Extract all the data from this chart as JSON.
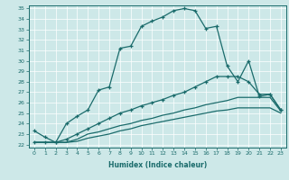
{
  "xlabel": "Humidex (Indice chaleur)",
  "bg_color": "#cde8e8",
  "line_color": "#1a6b6b",
  "grid_color": "#ffffff",
  "xlim": [
    -0.5,
    23.5
  ],
  "ylim": [
    21.7,
    35.3
  ],
  "xticks": [
    0,
    1,
    2,
    3,
    4,
    5,
    6,
    7,
    8,
    9,
    10,
    11,
    12,
    13,
    14,
    15,
    16,
    17,
    18,
    19,
    20,
    21,
    22,
    23
  ],
  "yticks": [
    22,
    23,
    24,
    25,
    26,
    27,
    28,
    29,
    30,
    31,
    32,
    33,
    34,
    35
  ],
  "curve_top_x": [
    0,
    1,
    2,
    3,
    4,
    5,
    6,
    7,
    8,
    9,
    10,
    11,
    12,
    13,
    14,
    15,
    16,
    17,
    18,
    19,
    20,
    21,
    22,
    23
  ],
  "curve_top_y": [
    23.3,
    22.7,
    22.2,
    24.0,
    24.7,
    25.3,
    27.2,
    27.5,
    31.2,
    31.4,
    33.3,
    33.8,
    34.2,
    34.8,
    35.0,
    34.8,
    33.1,
    33.3,
    29.5,
    28.0,
    30.0,
    26.6,
    26.8,
    25.3
  ],
  "curve_mid_x": [
    0,
    1,
    2,
    3,
    4,
    5,
    6,
    7,
    8,
    9,
    10,
    11,
    12,
    13,
    14,
    15,
    16,
    17,
    18,
    19,
    20,
    21,
    22,
    23
  ],
  "curve_mid_y": [
    22.2,
    22.2,
    22.2,
    22.5,
    23.0,
    23.5,
    24.0,
    24.5,
    25.0,
    25.3,
    25.7,
    26.0,
    26.3,
    26.7,
    27.0,
    27.5,
    28.0,
    28.5,
    28.5,
    28.5,
    28.0,
    26.8,
    26.8,
    25.3
  ],
  "curve_low1_x": [
    0,
    1,
    2,
    3,
    4,
    5,
    6,
    7,
    8,
    9,
    10,
    11,
    12,
    13,
    14,
    15,
    16,
    17,
    18,
    19,
    20,
    21,
    22,
    23
  ],
  "curve_low1_y": [
    22.2,
    22.2,
    22.2,
    22.2,
    22.5,
    23.0,
    23.2,
    23.5,
    23.8,
    24.0,
    24.3,
    24.5,
    24.8,
    25.0,
    25.3,
    25.5,
    25.8,
    26.0,
    26.2,
    26.5,
    26.5,
    26.5,
    26.5,
    25.2
  ],
  "curve_low2_x": [
    0,
    1,
    2,
    3,
    4,
    5,
    6,
    7,
    8,
    9,
    10,
    11,
    12,
    13,
    14,
    15,
    16,
    17,
    18,
    19,
    20,
    21,
    22,
    23
  ],
  "curve_low2_y": [
    22.2,
    22.2,
    22.2,
    22.2,
    22.3,
    22.6,
    22.8,
    23.0,
    23.3,
    23.5,
    23.8,
    24.0,
    24.2,
    24.4,
    24.6,
    24.8,
    25.0,
    25.2,
    25.3,
    25.5,
    25.5,
    25.5,
    25.5,
    25.0
  ]
}
